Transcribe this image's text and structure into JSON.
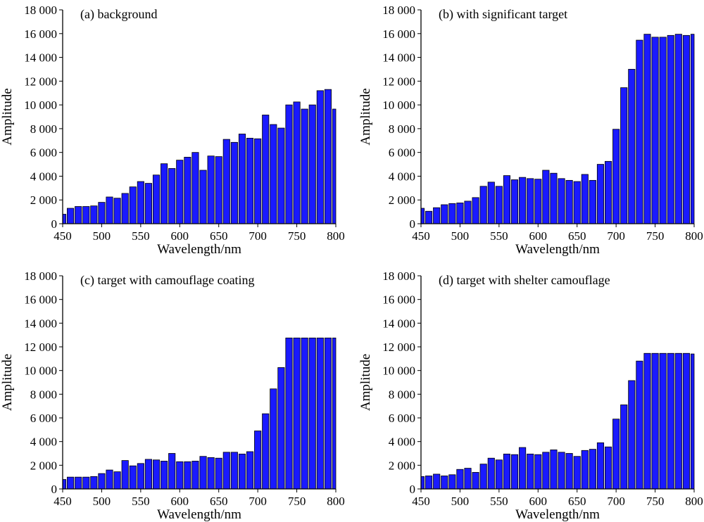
{
  "figure": {
    "bar_color": "#1a1aff",
    "bar_edge_color": "#000000"
  },
  "chart_data": [
    {
      "type": "bar",
      "title": "(a) background",
      "xlabel": "Wavelength/nm",
      "ylabel": "Amplitude",
      "xlim": [
        450,
        800
      ],
      "ylim": [
        0,
        18000
      ],
      "xticks": [
        "450",
        "500",
        "550",
        "600",
        "650",
        "700",
        "750",
        "800"
      ],
      "yticks": [
        "0",
        "2 000",
        "4 000",
        "6 000",
        "8 000",
        "10 000",
        "12 000",
        "14 000",
        "16 000",
        "18 000"
      ],
      "grid": false,
      "x": [
        450,
        460,
        470,
        480,
        490,
        500,
        510,
        520,
        530,
        540,
        550,
        560,
        570,
        580,
        590,
        600,
        610,
        620,
        630,
        640,
        650,
        660,
        670,
        680,
        690,
        700,
        710,
        720,
        730,
        740,
        750,
        760,
        770,
        780,
        790,
        800
      ],
      "values": [
        800,
        1300,
        1450,
        1450,
        1500,
        1800,
        2250,
        2150,
        2550,
        3100,
        3550,
        3400,
        4100,
        5050,
        4650,
        5350,
        5600,
        6000,
        4500,
        5700,
        5650,
        7100,
        6850,
        7550,
        7200,
        7150,
        9150,
        8350,
        8050,
        10000,
        10250,
        9650,
        10000,
        11200,
        11300,
        9650
      ]
    },
    {
      "type": "bar",
      "title": "(b) with significant target",
      "xlabel": "Wavelength/nm",
      "ylabel": "Amplitude",
      "xlim": [
        450,
        800
      ],
      "ylim": [
        0,
        18000
      ],
      "xticks": [
        "450",
        "500",
        "550",
        "600",
        "650",
        "700",
        "750",
        "800"
      ],
      "yticks": [
        "0",
        "2 000",
        "4 000",
        "6 000",
        "8 000",
        "10 000",
        "12 000",
        "14 000",
        "16 000",
        "18 000"
      ],
      "grid": false,
      "x": [
        450,
        460,
        470,
        480,
        490,
        500,
        510,
        520,
        530,
        540,
        550,
        560,
        570,
        580,
        590,
        600,
        610,
        620,
        630,
        640,
        650,
        660,
        670,
        680,
        690,
        700,
        710,
        720,
        730,
        740,
        750,
        760,
        770,
        780,
        790,
        800
      ],
      "values": [
        1300,
        1050,
        1350,
        1600,
        1700,
        1750,
        1900,
        2200,
        3150,
        3500,
        3150,
        4050,
        3700,
        3900,
        3800,
        3750,
        4500,
        4250,
        3800,
        3650,
        3550,
        4150,
        3650,
        5000,
        5250,
        7950,
        11450,
        13000,
        15450,
        15950,
        15700,
        15700,
        15850,
        15950,
        15850,
        15950
      ]
    },
    {
      "type": "bar",
      "title": "(c) target with camouflage coating",
      "xlabel": "Wavelength/nm",
      "ylabel": "Amplitude",
      "xlim": [
        450,
        800
      ],
      "ylim": [
        0,
        18000
      ],
      "xticks": [
        "450",
        "500",
        "550",
        "600",
        "650",
        "700",
        "750",
        "800"
      ],
      "yticks": [
        "0",
        "2 000",
        "4 000",
        "6 000",
        "8 000",
        "10 000",
        "12 000",
        "14 000",
        "16 000",
        "18 000"
      ],
      "grid": false,
      "x": [
        450,
        460,
        470,
        480,
        490,
        500,
        510,
        520,
        530,
        540,
        550,
        560,
        570,
        580,
        590,
        600,
        610,
        620,
        630,
        640,
        650,
        660,
        670,
        680,
        690,
        700,
        710,
        720,
        730,
        740,
        750,
        760,
        770,
        780,
        790,
        800
      ],
      "values": [
        800,
        1000,
        1000,
        1000,
        1050,
        1300,
        1600,
        1450,
        2400,
        1950,
        2150,
        2500,
        2450,
        2350,
        3000,
        2300,
        2300,
        2350,
        2750,
        2650,
        2600,
        3100,
        3100,
        2950,
        3150,
        4900,
        6350,
        8450,
        10250,
        12750,
        12750,
        12750,
        12750,
        12750,
        12750,
        12750
      ]
    },
    {
      "type": "bar",
      "title": "(d) target with shelter camouflage",
      "xlabel": "Wavelength/nm",
      "ylabel": "Amplitude",
      "xlim": [
        450,
        800
      ],
      "ylim": [
        0,
        18000
      ],
      "xticks": [
        "450",
        "500",
        "550",
        "600",
        "650",
        "700",
        "750",
        "800"
      ],
      "yticks": [
        "0",
        "2 000",
        "4 000",
        "6 000",
        "8 000",
        "10 000",
        "12 000",
        "14 000",
        "16 000",
        "18 000"
      ],
      "grid": false,
      "x": [
        450,
        460,
        470,
        480,
        490,
        500,
        510,
        520,
        530,
        540,
        550,
        560,
        570,
        580,
        590,
        600,
        610,
        620,
        630,
        640,
        650,
        660,
        670,
        680,
        690,
        700,
        710,
        720,
        730,
        740,
        750,
        760,
        770,
        780,
        790,
        800
      ],
      "values": [
        1050,
        1100,
        1250,
        1100,
        1200,
        1650,
        1750,
        1400,
        2100,
        2600,
        2450,
        2950,
        2900,
        3500,
        2950,
        2900,
        3100,
        3300,
        3100,
        3000,
        2750,
        3250,
        3350,
        3900,
        3550,
        5900,
        7100,
        9150,
        10800,
        11450,
        11450,
        11450,
        11450,
        11450,
        11450,
        11400
      ]
    }
  ]
}
